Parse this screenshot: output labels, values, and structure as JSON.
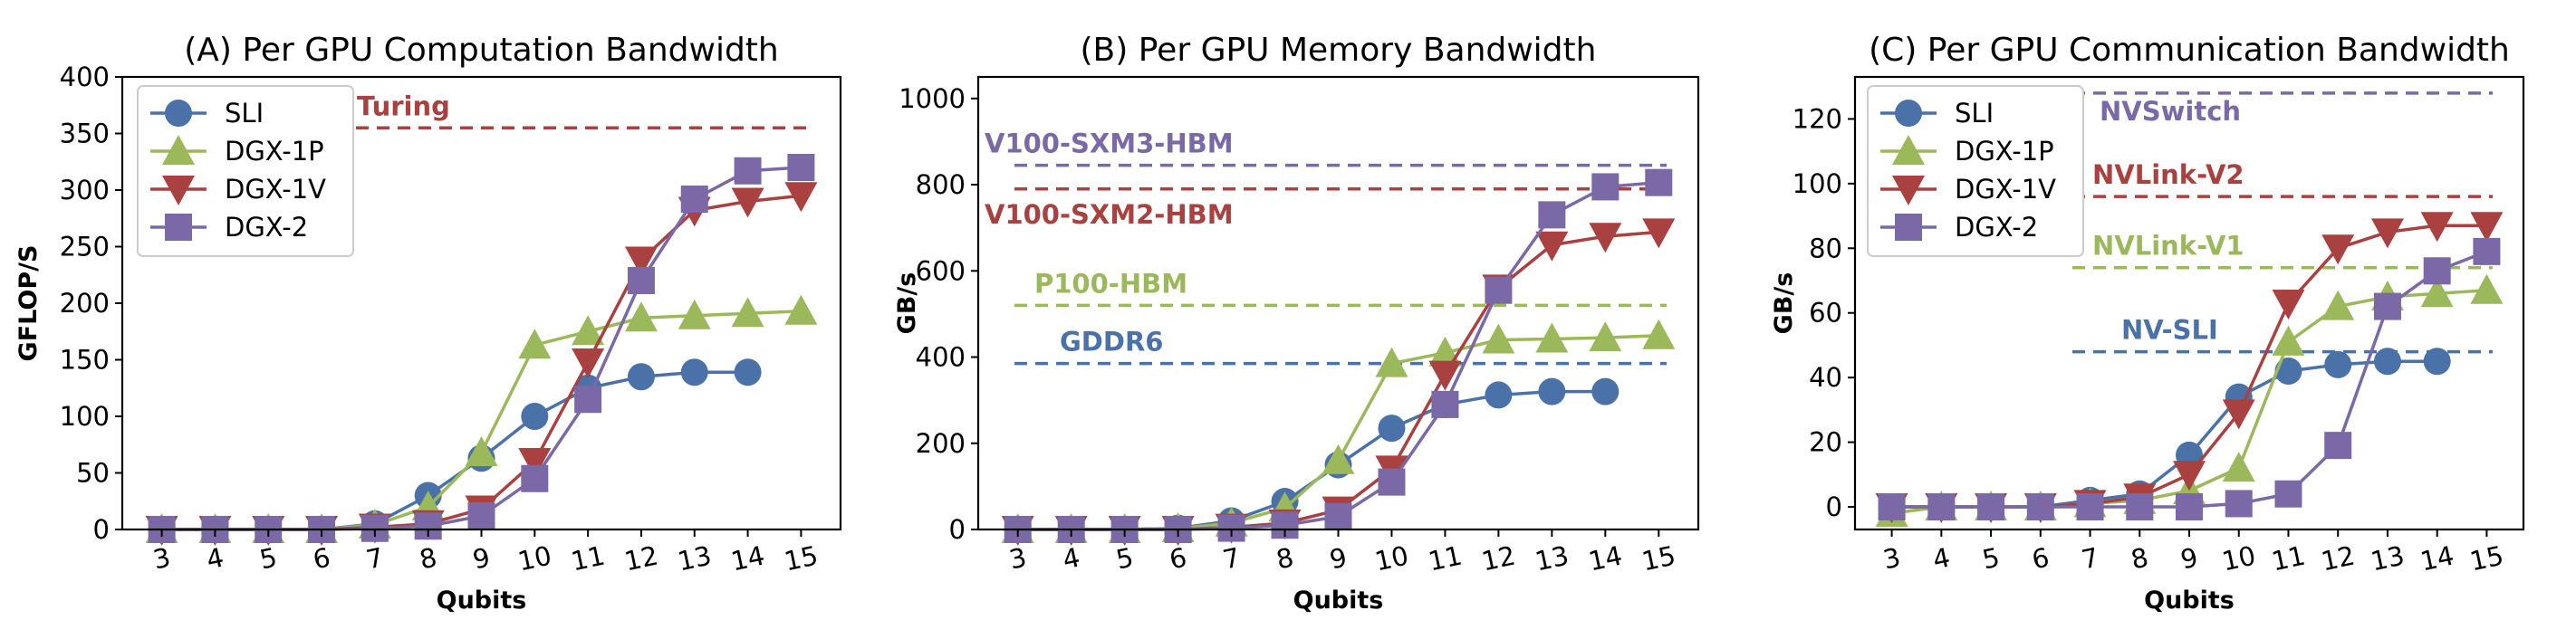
{
  "chart_data": [
    {
      "type": "line",
      "title": "(A) Per GPU Computation Bandwidth",
      "xlabel": "Qubits",
      "ylabel": "GFLOP/S",
      "categories": [
        3,
        4,
        5,
        6,
        7,
        8,
        9,
        10,
        11,
        12,
        13,
        14,
        15
      ],
      "ylim": [
        0,
        400
      ],
      "yticks": [
        0,
        50,
        100,
        150,
        200,
        250,
        300,
        350,
        400
      ],
      "legend_position": "top-left",
      "series": [
        {
          "name": "SLI",
          "marker": "circle",
          "values": [
            0,
            0,
            0,
            0,
            5,
            30,
            63,
            100,
            125,
            135,
            139,
            139,
            null
          ]
        },
        {
          "name": "DGX-1P",
          "marker": "triangle-up",
          "values": [
            0,
            0,
            0,
            0,
            4,
            20,
            68,
            163,
            175,
            187,
            189,
            191,
            193
          ]
        },
        {
          "name": "DGX-1V",
          "marker": "triangle-down",
          "values": [
            0,
            0,
            0,
            0,
            2,
            5,
            18,
            60,
            148,
            238,
            282,
            290,
            295
          ]
        },
        {
          "name": "DGX-2",
          "marker": "square",
          "values": [
            0,
            0,
            0,
            0,
            1,
            3,
            12,
            45,
            115,
            220,
            292,
            317,
            320
          ]
        }
      ],
      "reference_lines": [
        {
          "label": "Turing",
          "value": 355,
          "color": "#A8413F"
        }
      ]
    },
    {
      "type": "line",
      "title": "(B) Per GPU Memory Bandwidth",
      "xlabel": "Qubits",
      "ylabel": "GB/s",
      "categories": [
        3,
        4,
        5,
        6,
        7,
        8,
        9,
        10,
        11,
        12,
        13,
        14,
        15
      ],
      "ylim": [
        0,
        1050
      ],
      "yticks": [
        0,
        200,
        400,
        600,
        800,
        1000
      ],
      "series": [
        {
          "name": "SLI",
          "marker": "circle",
          "values": [
            0,
            0,
            0,
            3,
            20,
            65,
            150,
            235,
            290,
            312,
            320,
            320,
            null
          ]
        },
        {
          "name": "DGX-1P",
          "marker": "triangle-up",
          "values": [
            0,
            0,
            0,
            2,
            15,
            50,
            160,
            385,
            410,
            440,
            442,
            445,
            450
          ]
        },
        {
          "name": "DGX-1V",
          "marker": "triangle-down",
          "values": [
            0,
            0,
            0,
            0,
            5,
            15,
            45,
            140,
            360,
            560,
            660,
            680,
            690
          ]
        },
        {
          "name": "DGX-2",
          "marker": "square",
          "values": [
            0,
            0,
            0,
            0,
            3,
            10,
            30,
            110,
            290,
            555,
            730,
            795,
            805
          ]
        }
      ],
      "reference_lines": [
        {
          "label": "V100-SXM3-HBM",
          "value": 845,
          "color": "#7B68A6"
        },
        {
          "label": "V100-SXM2-HBM",
          "value": 790,
          "color": "#A8413F"
        },
        {
          "label": "P100-HBM",
          "value": 520,
          "color": "#9BB95B"
        },
        {
          "label": "GDDR6",
          "value": 385,
          "color": "#4A71A8"
        }
      ]
    },
    {
      "type": "line",
      "title": "(C) Per GPU Communication Bandwidth",
      "xlabel": "Qubits",
      "ylabel": "GB/s",
      "categories": [
        3,
        4,
        5,
        6,
        7,
        8,
        9,
        10,
        11,
        12,
        13,
        14,
        15
      ],
      "ylim": [
        -7,
        133
      ],
      "yticks": [
        0,
        20,
        40,
        60,
        80,
        100,
        120
      ],
      "legend_position": "top-left",
      "series": [
        {
          "name": "SLI",
          "marker": "circle",
          "values": [
            0,
            0,
            0,
            0,
            2,
            4,
            16,
            34,
            42,
            44,
            45,
            45,
            null
          ]
        },
        {
          "name": "DGX-1P",
          "marker": "triangle-up",
          "values": [
            -2,
            0,
            0,
            0,
            1,
            2,
            5,
            12,
            51,
            62,
            65,
            66,
            67
          ]
        },
        {
          "name": "DGX-1V",
          "marker": "triangle-down",
          "values": [
            0,
            0,
            0,
            0,
            1,
            3,
            10,
            29,
            63,
            80,
            85,
            87,
            87
          ]
        },
        {
          "name": "DGX-2",
          "marker": "square",
          "values": [
            0,
            0,
            0,
            0,
            0,
            0,
            0,
            1,
            4,
            19,
            62,
            73,
            79
          ]
        }
      ],
      "reference_lines": [
        {
          "label": "NVSwitch",
          "value": 128,
          "color": "#7B68A6"
        },
        {
          "label": "NVLink-V2",
          "value": 96,
          "color": "#A8413F"
        },
        {
          "label": "NVLink-V1",
          "value": 74,
          "color": "#9BB95B"
        },
        {
          "label": "NV-SLI",
          "value": 48,
          "color": "#4A71A8"
        }
      ]
    }
  ],
  "series_colors": {
    "SLI": "#4A71A8",
    "DGX-1P": "#9BB95B",
    "DGX-1V": "#A8413F",
    "DGX-2": "#7B68A6"
  }
}
